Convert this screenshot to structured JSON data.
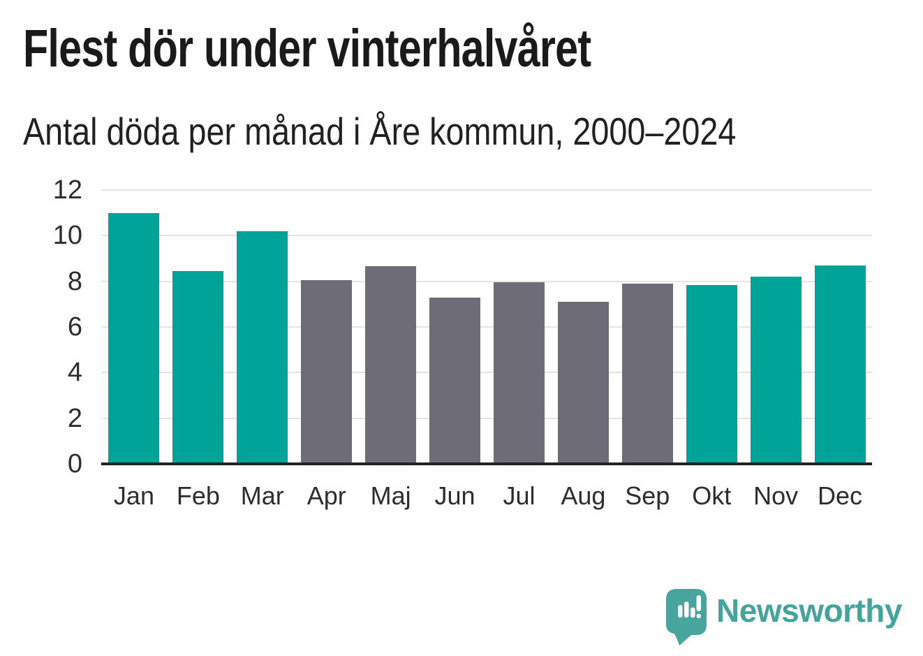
{
  "header": {
    "title": "Flest dör under vinterhalvåret",
    "subtitle": "Antal döda per månad i Åre kommun, 2000–2024"
  },
  "chart_data": {
    "type": "bar",
    "title": "Flest dör under vinterhalvåret",
    "subtitle": "Antal döda per månad i Åre kommun, 2000–2024",
    "categories": [
      "Jan",
      "Feb",
      "Mar",
      "Apr",
      "Maj",
      "Jun",
      "Jul",
      "Aug",
      "Sep",
      "Okt",
      "Nov",
      "Dec"
    ],
    "values": [
      11.0,
      8.45,
      10.2,
      8.05,
      8.65,
      7.3,
      7.95,
      7.1,
      7.9,
      7.85,
      8.2,
      8.7
    ],
    "colors": [
      "#00a398",
      "#00a398",
      "#00a398",
      "#6e6c76",
      "#6e6c76",
      "#6e6c76",
      "#6e6c76",
      "#6e6c76",
      "#6e6c76",
      "#00a398",
      "#00a398",
      "#00a398"
    ],
    "color_legend": {
      "winter_half_year": "#00a398",
      "summer_half_year": "#6e6c76"
    },
    "xlabel": "",
    "ylabel": "",
    "ylim": [
      0,
      12
    ],
    "yticks": [
      0,
      2,
      4,
      6,
      8,
      10,
      12
    ],
    "grid": true,
    "legend_position": "none"
  },
  "footer": {
    "brand": "Newsworthy",
    "brand_color": "#44a39b",
    "logo_icon": "newsworthy-speech-bubble-chart-icon"
  }
}
